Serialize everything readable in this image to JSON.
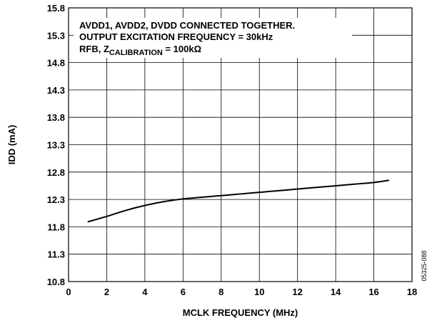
{
  "chart_data": {
    "type": "line",
    "title": "",
    "xlabel": "MCLK FREQUENCY (MHz)",
    "ylabel": "IDD (mA)",
    "xlim": [
      0,
      18
    ],
    "ylim": [
      10.8,
      15.8
    ],
    "xticks": [
      0,
      2,
      4,
      6,
      8,
      10,
      12,
      14,
      16,
      18
    ],
    "yticks": [
      10.8,
      11.3,
      11.8,
      12.3,
      12.8,
      13.3,
      13.8,
      14.3,
      14.8,
      15.3,
      15.8
    ],
    "xtick_labels": [
      "0",
      "2",
      "4",
      "6",
      "8",
      "10",
      "12",
      "14",
      "16",
      "18"
    ],
    "ytick_labels": [
      "10.8",
      "11.3",
      "11.8",
      "12.3",
      "12.8",
      "13.3",
      "13.8",
      "14.3",
      "14.8",
      "15.3",
      "15.8"
    ],
    "grid": true,
    "annotation": {
      "line1": "AVDD1, AVDD2, DVDD CONNECTED TOGETHER.",
      "line2": "OUTPUT EXCITATION FREQUENCY = 30kHz",
      "line3_prefix": "RFB, Z",
      "line3_subscript": "CALIBRATION",
      "line3_suffix": " = 100kΩ"
    },
    "figure_id": "05325-088",
    "series": [
      {
        "x": [
          1,
          2,
          3,
          4,
          5,
          6,
          7,
          8,
          9,
          10,
          11,
          12,
          13,
          14,
          15,
          16,
          16.8
        ],
        "values": [
          11.89,
          11.99,
          12.1,
          12.19,
          12.26,
          12.31,
          12.34,
          12.37,
          12.4,
          12.43,
          12.46,
          12.49,
          12.52,
          12.55,
          12.58,
          12.61,
          12.65
        ]
      }
    ]
  }
}
